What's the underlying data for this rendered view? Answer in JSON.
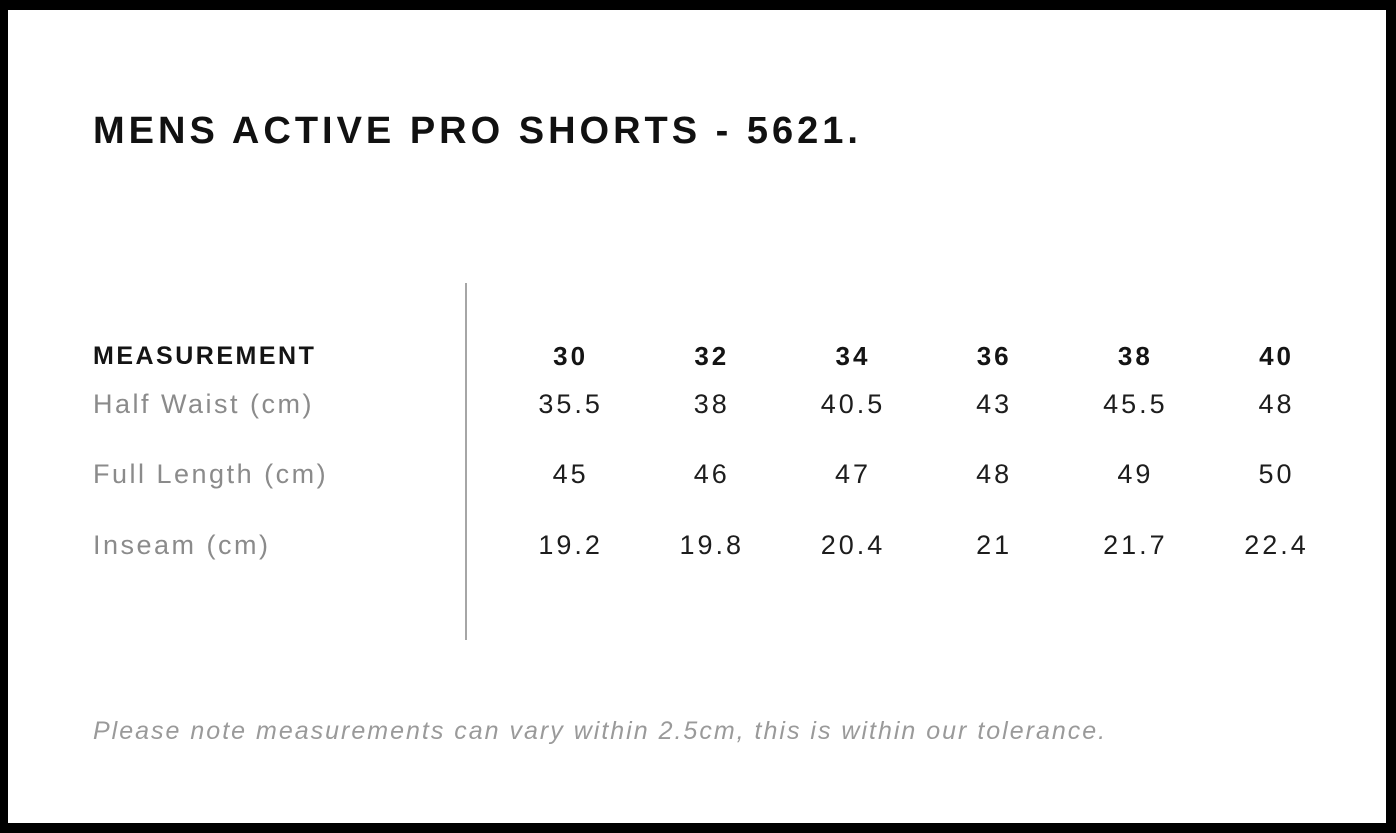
{
  "page": {
    "title": "MENS ACTIVE PRO SHORTS - 5621."
  },
  "table": {
    "header": {
      "label": "MEASUREMENT",
      "sizes": [
        "30",
        "32",
        "34",
        "36",
        "38",
        "40"
      ]
    },
    "rows": [
      {
        "label": "Half Waist (cm)",
        "values": [
          "35.5",
          "38",
          "40.5",
          "43",
          "45.5",
          "48"
        ]
      },
      {
        "label": "Full Length (cm)",
        "values": [
          "45",
          "46",
          "47",
          "48",
          "49",
          "50"
        ]
      },
      {
        "label": "Inseam (cm)",
        "values": [
          "19.2",
          "19.8",
          "20.4",
          "21",
          "21.7",
          "22.4"
        ]
      }
    ]
  },
  "footer": {
    "note": "Please note measurements can vary within 2.5cm, this is within our tolerance."
  },
  "colors": {
    "frame_border": "#000000",
    "title_text": "#111111",
    "value_text": "#1d1d1d",
    "label_text": "#8b8b8b",
    "divider": "#a6a6a6",
    "note_text": "#9a9a9a",
    "background": "#ffffff"
  }
}
